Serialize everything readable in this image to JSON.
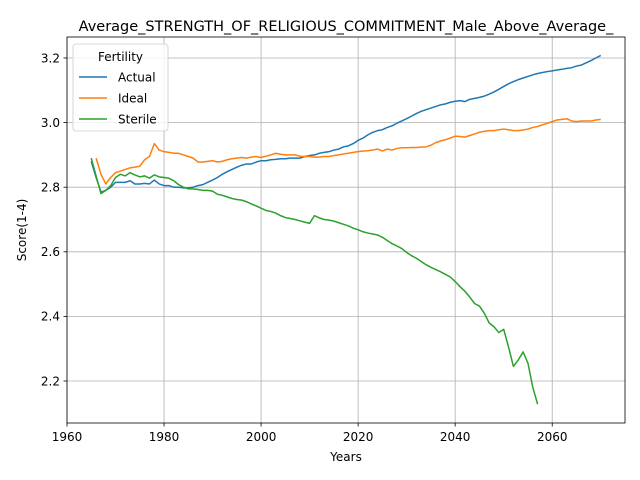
{
  "chart_data": {
    "type": "line",
    "title": "Average_STRENGTH_OF_RELIGIOUS_COMMITMENT_Male_Above_Average_",
    "xlabel": "Years",
    "ylabel": "Score(1-4)",
    "xlim": [
      1960,
      2075
    ],
    "ylim": [
      2.07,
      3.265
    ],
    "xticks": [
      1960,
      1980,
      2000,
      2020,
      2040,
      2060
    ],
    "yticks": [
      2.2,
      2.4,
      2.6,
      2.8,
      3.0,
      3.2
    ],
    "ytick_labels": [
      "2.2",
      "2.4",
      "2.6",
      "2.8",
      "3.0",
      "3.2"
    ],
    "grid": true,
    "legend": {
      "title": "Fertility",
      "position": "top-left"
    },
    "series": [
      {
        "name": "Actual",
        "color": "#1f77b4",
        "points": [
          [
            1965,
            2.88
          ],
          [
            1966,
            2.83
          ],
          [
            1967,
            2.785
          ],
          [
            1968,
            2.79
          ],
          [
            1969,
            2.8
          ],
          [
            1970,
            2.815
          ],
          [
            1971,
            2.815
          ],
          [
            1972,
            2.815
          ],
          [
            1973,
            2.82
          ],
          [
            1974,
            2.81
          ],
          [
            1975,
            2.81
          ],
          [
            1976,
            2.812
          ],
          [
            1977,
            2.81
          ],
          [
            1978,
            2.822
          ],
          [
            1979,
            2.81
          ],
          [
            1980,
            2.805
          ],
          [
            1981,
            2.805
          ],
          [
            1982,
            2.8
          ],
          [
            1983,
            2.8
          ],
          [
            1984,
            2.798
          ],
          [
            1985,
            2.798
          ],
          [
            1986,
            2.8
          ],
          [
            1987,
            2.805
          ],
          [
            1988,
            2.808
          ],
          [
            1989,
            2.815
          ],
          [
            1990,
            2.822
          ],
          [
            1991,
            2.83
          ],
          [
            1992,
            2.84
          ],
          [
            1993,
            2.848
          ],
          [
            1994,
            2.855
          ],
          [
            1995,
            2.862
          ],
          [
            1996,
            2.868
          ],
          [
            1997,
            2.872
          ],
          [
            1998,
            2.872
          ],
          [
            1999,
            2.878
          ],
          [
            2000,
            2.882
          ],
          [
            2001,
            2.882
          ],
          [
            2002,
            2.885
          ],
          [
            2003,
            2.886
          ],
          [
            2004,
            2.888
          ],
          [
            2005,
            2.888
          ],
          [
            2006,
            2.89
          ],
          [
            2007,
            2.89
          ],
          [
            2008,
            2.89
          ],
          [
            2009,
            2.895
          ],
          [
            2010,
            2.898
          ],
          [
            2011,
            2.9
          ],
          [
            2012,
            2.905
          ],
          [
            2013,
            2.908
          ],
          [
            2014,
            2.91
          ],
          [
            2015,
            2.915
          ],
          [
            2016,
            2.918
          ],
          [
            2017,
            2.925
          ],
          [
            2018,
            2.928
          ],
          [
            2019,
            2.935
          ],
          [
            2020,
            2.945
          ],
          [
            2021,
            2.952
          ],
          [
            2022,
            2.962
          ],
          [
            2023,
            2.97
          ],
          [
            2024,
            2.975
          ],
          [
            2025,
            2.978
          ],
          [
            2026,
            2.985
          ],
          [
            2027,
            2.99
          ],
          [
            2028,
            2.998
          ],
          [
            2029,
            3.005
          ],
          [
            2030,
            3.012
          ],
          [
            2031,
            3.02
          ],
          [
            2032,
            3.028
          ],
          [
            2033,
            3.035
          ],
          [
            2034,
            3.04
          ],
          [
            2035,
            3.045
          ],
          [
            2036,
            3.05
          ],
          [
            2037,
            3.055
          ],
          [
            2038,
            3.058
          ],
          [
            2039,
            3.063
          ],
          [
            2040,
            3.066
          ],
          [
            2041,
            3.068
          ],
          [
            2042,
            3.065
          ],
          [
            2043,
            3.072
          ],
          [
            2044,
            3.075
          ],
          [
            2045,
            3.078
          ],
          [
            2046,
            3.082
          ],
          [
            2047,
            3.088
          ],
          [
            2048,
            3.095
          ],
          [
            2049,
            3.103
          ],
          [
            2050,
            3.112
          ],
          [
            2051,
            3.12
          ],
          [
            2052,
            3.127
          ],
          [
            2053,
            3.133
          ],
          [
            2054,
            3.138
          ],
          [
            2055,
            3.143
          ],
          [
            2056,
            3.148
          ],
          [
            2057,
            3.152
          ],
          [
            2058,
            3.155
          ],
          [
            2059,
            3.158
          ],
          [
            2060,
            3.16
          ],
          [
            2061,
            3.163
          ],
          [
            2062,
            3.165
          ],
          [
            2063,
            3.168
          ],
          [
            2064,
            3.17
          ],
          [
            2065,
            3.175
          ],
          [
            2066,
            3.178
          ],
          [
            2067,
            3.185
          ],
          [
            2068,
            3.192
          ],
          [
            2069,
            3.2
          ],
          [
            2070,
            3.208
          ]
        ]
      },
      {
        "name": "Ideal",
        "color": "#ff7f0e",
        "points": [
          [
            1966,
            2.89
          ],
          [
            1967,
            2.84
          ],
          [
            1968,
            2.81
          ],
          [
            1969,
            2.83
          ],
          [
            1970,
            2.845
          ],
          [
            1971,
            2.85
          ],
          [
            1972,
            2.855
          ],
          [
            1973,
            2.86
          ],
          [
            1974,
            2.862
          ],
          [
            1975,
            2.865
          ],
          [
            1976,
            2.885
          ],
          [
            1977,
            2.895
          ],
          [
            1978,
            2.935
          ],
          [
            1979,
            2.915
          ],
          [
            1980,
            2.91
          ],
          [
            1981,
            2.908
          ],
          [
            1982,
            2.905
          ],
          [
            1983,
            2.905
          ],
          [
            1984,
            2.9
          ],
          [
            1985,
            2.895
          ],
          [
            1986,
            2.89
          ],
          [
            1987,
            2.878
          ],
          [
            1988,
            2.878
          ],
          [
            1989,
            2.88
          ],
          [
            1990,
            2.882
          ],
          [
            1991,
            2.878
          ],
          [
            1992,
            2.88
          ],
          [
            1993,
            2.885
          ],
          [
            1994,
            2.888
          ],
          [
            1995,
            2.89
          ],
          [
            1996,
            2.892
          ],
          [
            1997,
            2.89
          ],
          [
            1998,
            2.893
          ],
          [
            1999,
            2.895
          ],
          [
            2000,
            2.892
          ],
          [
            2001,
            2.896
          ],
          [
            2002,
            2.9
          ],
          [
            2003,
            2.905
          ],
          [
            2004,
            2.902
          ],
          [
            2005,
            2.9
          ],
          [
            2006,
            2.9
          ],
          [
            2007,
            2.9
          ],
          [
            2008,
            2.896
          ],
          [
            2009,
            2.895
          ],
          [
            2010,
            2.895
          ],
          [
            2011,
            2.893
          ],
          [
            2012,
            2.893
          ],
          [
            2013,
            2.895
          ],
          [
            2014,
            2.895
          ],
          [
            2015,
            2.898
          ],
          [
            2016,
            2.9
          ],
          [
            2017,
            2.903
          ],
          [
            2018,
            2.905
          ],
          [
            2019,
            2.908
          ],
          [
            2020,
            2.91
          ],
          [
            2021,
            2.912
          ],
          [
            2022,
            2.913
          ],
          [
            2023,
            2.915
          ],
          [
            2024,
            2.918
          ],
          [
            2025,
            2.912
          ],
          [
            2026,
            2.918
          ],
          [
            2027,
            2.915
          ],
          [
            2028,
            2.92
          ],
          [
            2029,
            2.922
          ],
          [
            2030,
            2.922
          ],
          [
            2031,
            2.923
          ],
          [
            2032,
            2.923
          ],
          [
            2033,
            2.924
          ],
          [
            2034,
            2.925
          ],
          [
            2035,
            2.93
          ],
          [
            2036,
            2.938
          ],
          [
            2037,
            2.943
          ],
          [
            2038,
            2.947
          ],
          [
            2039,
            2.952
          ],
          [
            2040,
            2.958
          ],
          [
            2041,
            2.957
          ],
          [
            2042,
            2.955
          ],
          [
            2043,
            2.96
          ],
          [
            2044,
            2.965
          ],
          [
            2045,
            2.97
          ],
          [
            2046,
            2.973
          ],
          [
            2047,
            2.975
          ],
          [
            2048,
            2.975
          ],
          [
            2049,
            2.978
          ],
          [
            2050,
            2.98
          ],
          [
            2051,
            2.978
          ],
          [
            2052,
            2.975
          ],
          [
            2053,
            2.975
          ],
          [
            2054,
            2.977
          ],
          [
            2055,
            2.98
          ],
          [
            2056,
            2.985
          ],
          [
            2057,
            2.988
          ],
          [
            2058,
            2.993
          ],
          [
            2059,
            2.998
          ],
          [
            2060,
            3.003
          ],
          [
            2061,
            3.008
          ],
          [
            2062,
            3.01
          ],
          [
            2063,
            3.012
          ],
          [
            2064,
            3.005
          ],
          [
            2065,
            3.003
          ],
          [
            2066,
            3.005
          ],
          [
            2067,
            3.005
          ],
          [
            2068,
            3.005
          ],
          [
            2069,
            3.008
          ],
          [
            2070,
            3.01
          ]
        ]
      },
      {
        "name": "Sterile",
        "color": "#2ca02c",
        "points": [
          [
            1965,
            2.89
          ],
          [
            1966,
            2.835
          ],
          [
            1967,
            2.78
          ],
          [
            1968,
            2.79
          ],
          [
            1969,
            2.805
          ],
          [
            1970,
            2.83
          ],
          [
            1971,
            2.84
          ],
          [
            1972,
            2.835
          ],
          [
            1973,
            2.845
          ],
          [
            1974,
            2.838
          ],
          [
            1975,
            2.832
          ],
          [
            1976,
            2.835
          ],
          [
            1977,
            2.828
          ],
          [
            1978,
            2.838
          ],
          [
            1979,
            2.832
          ],
          [
            1980,
            2.83
          ],
          [
            1981,
            2.828
          ],
          [
            1982,
            2.82
          ],
          [
            1983,
            2.808
          ],
          [
            1984,
            2.8
          ],
          [
            1985,
            2.795
          ],
          [
            1986,
            2.795
          ],
          [
            1987,
            2.793
          ],
          [
            1988,
            2.79
          ],
          [
            1989,
            2.79
          ],
          [
            1990,
            2.788
          ],
          [
            1991,
            2.778
          ],
          [
            1992,
            2.775
          ],
          [
            1993,
            2.77
          ],
          [
            1994,
            2.765
          ],
          [
            1995,
            2.762
          ],
          [
            1996,
            2.76
          ],
          [
            1997,
            2.755
          ],
          [
            1998,
            2.748
          ],
          [
            1999,
            2.742
          ],
          [
            2000,
            2.735
          ],
          [
            2001,
            2.728
          ],
          [
            2002,
            2.725
          ],
          [
            2003,
            2.72
          ],
          [
            2004,
            2.712
          ],
          [
            2005,
            2.706
          ],
          [
            2006,
            2.703
          ],
          [
            2007,
            2.7
          ],
          [
            2008,
            2.696
          ],
          [
            2009,
            2.692
          ],
          [
            2010,
            2.688
          ],
          [
            2011,
            2.712
          ],
          [
            2012,
            2.705
          ],
          [
            2013,
            2.7
          ],
          [
            2014,
            2.698
          ],
          [
            2015,
            2.695
          ],
          [
            2016,
            2.69
          ],
          [
            2017,
            2.685
          ],
          [
            2018,
            2.68
          ],
          [
            2019,
            2.673
          ],
          [
            2020,
            2.668
          ],
          [
            2021,
            2.662
          ],
          [
            2022,
            2.658
          ],
          [
            2023,
            2.655
          ],
          [
            2024,
            2.652
          ],
          [
            2025,
            2.645
          ],
          [
            2026,
            2.635
          ],
          [
            2027,
            2.625
          ],
          [
            2028,
            2.618
          ],
          [
            2029,
            2.61
          ],
          [
            2030,
            2.598
          ],
          [
            2031,
            2.588
          ],
          [
            2032,
            2.58
          ],
          [
            2033,
            2.57
          ],
          [
            2034,
            2.56
          ],
          [
            2035,
            2.552
          ],
          [
            2036,
            2.545
          ],
          [
            2037,
            2.538
          ],
          [
            2038,
            2.53
          ],
          [
            2039,
            2.522
          ],
          [
            2040,
            2.508
          ],
          [
            2041,
            2.492
          ],
          [
            2042,
            2.478
          ],
          [
            2043,
            2.46
          ],
          [
            2044,
            2.44
          ],
          [
            2045,
            2.432
          ],
          [
            2046,
            2.41
          ],
          [
            2047,
            2.38
          ],
          [
            2048,
            2.368
          ],
          [
            2049,
            2.35
          ],
          [
            2050,
            2.36
          ],
          [
            2051,
            2.305
          ],
          [
            2052,
            2.245
          ],
          [
            2053,
            2.265
          ],
          [
            2054,
            2.29
          ],
          [
            2055,
            2.255
          ],
          [
            2056,
            2.18
          ],
          [
            2057,
            2.128
          ]
        ]
      }
    ]
  }
}
